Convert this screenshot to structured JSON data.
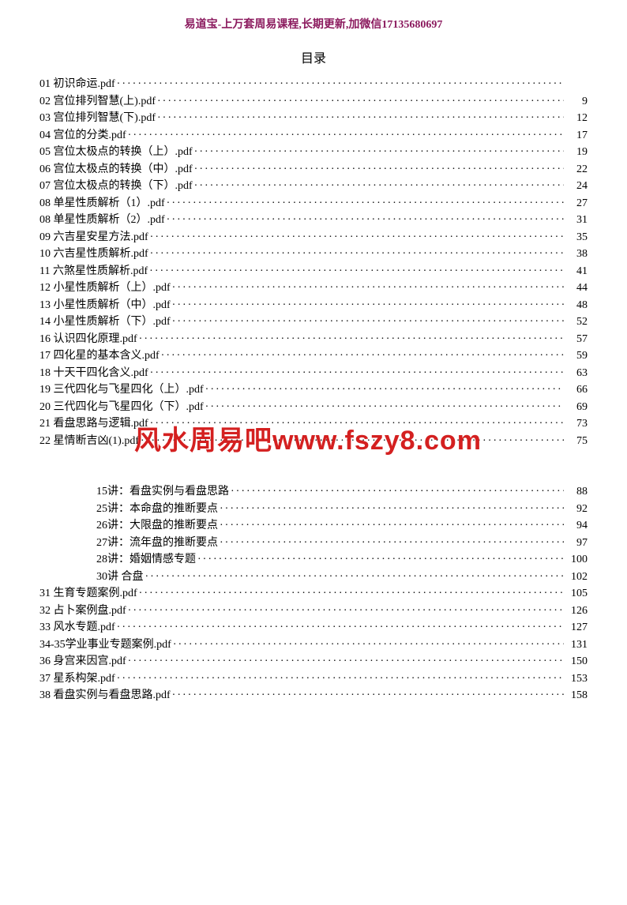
{
  "header_text": "易道宝-上万套周易课程,长期更新,加微信17135680697",
  "toc_title": "目录",
  "watermark": "风水周易吧www.fszy8.com",
  "colors": {
    "header": "#8b1a5e",
    "text": "#000000",
    "watermark": "#d42020",
    "background": "#ffffff"
  },
  "entries": [
    {
      "label": "01 初识命运.pdf",
      "page": "",
      "indent": false
    },
    {
      "label": "02 宫位排列智慧(上).pdf",
      "page": "9",
      "indent": false
    },
    {
      "label": "03 宫位排列智慧(下).pdf",
      "page": "12",
      "indent": false
    },
    {
      "label": "04 宫位的分类.pdf",
      "page": "17",
      "indent": false
    },
    {
      "label": "05 宫位太极点的转换（上）.pdf",
      "page": "19",
      "indent": false
    },
    {
      "label": "06 宫位太极点的转换（中）.pdf",
      "page": "22",
      "indent": false
    },
    {
      "label": "07 宫位太极点的转换（下）.pdf",
      "page": "24",
      "indent": false
    },
    {
      "label": "08 单星性质解析（1）.pdf",
      "page": "27",
      "indent": false
    },
    {
      "label": "08 单星性质解析（2）.pdf",
      "page": "31",
      "indent": false
    },
    {
      "label": "09 六吉星安星方法.pdf",
      "page": "35",
      "indent": false
    },
    {
      "label": "10 六吉星性质解析.pdf",
      "page": "38",
      "indent": false
    },
    {
      "label": "11 六煞星性质解析.pdf",
      "page": "41",
      "indent": false
    },
    {
      "label": "12 小星性质解析（上）.pdf",
      "page": "44",
      "indent": false
    },
    {
      "label": "13 小星性质解析（中）.pdf",
      "page": "48",
      "indent": false
    },
    {
      "label": "14 小星性质解析（下）.pdf",
      "page": "52",
      "indent": false
    },
    {
      "label": "16 认识四化原理.pdf",
      "page": "57",
      "indent": false
    },
    {
      "label": "17 四化星的基本含义.pdf",
      "page": "59",
      "indent": false
    },
    {
      "label": "18 十天干四化含义.pdf",
      "page": "63",
      "indent": false
    },
    {
      "label": "19 三代四化与飞星四化（上）.pdf",
      "page": "66",
      "indent": false
    },
    {
      "label": "20 三代四化与飞星四化（下）.pdf",
      "page": "69",
      "indent": false
    },
    {
      "label": "21 看盘思路与逻辑.pdf",
      "page": "73",
      "indent": false
    },
    {
      "label": "22 星情断吉凶(1).pdf",
      "page": "75",
      "indent": false
    },
    {
      "label": "",
      "page": "",
      "indent": false,
      "spacer": true
    },
    {
      "label": "",
      "page": "",
      "indent": false,
      "spacer": true
    },
    {
      "label": "15讲：看盘实例与看盘思路",
      "page": "88",
      "indent": true
    },
    {
      "label": "25讲：本命盘的推断要点",
      "page": "92",
      "indent": true
    },
    {
      "label": "26讲：大限盘的推断要点",
      "page": "94",
      "indent": true
    },
    {
      "label": "27讲：流年盘的推断要点",
      "page": "97",
      "indent": true
    },
    {
      "label": "28讲：婚姻情感专题",
      "page": "100",
      "indent": true
    },
    {
      "label": "30讲 合盘",
      "page": "102",
      "indent": true
    },
    {
      "label": "31 生育专题案例.pdf",
      "page": "105",
      "indent": false
    },
    {
      "label": "32 占卜案例盘.pdf",
      "page": "126",
      "indent": false
    },
    {
      "label": "33 风水专题.pdf",
      "page": "127",
      "indent": false
    },
    {
      "label": "34-35学业事业专题案例.pdf",
      "page": "131",
      "indent": false
    },
    {
      "label": "36 身宫来因宫.pdf",
      "page": "150",
      "indent": false
    },
    {
      "label": "37 星系构架.pdf",
      "page": "153",
      "indent": false
    },
    {
      "label": "38 看盘实例与看盘思路.pdf",
      "page": "158",
      "indent": false
    }
  ]
}
